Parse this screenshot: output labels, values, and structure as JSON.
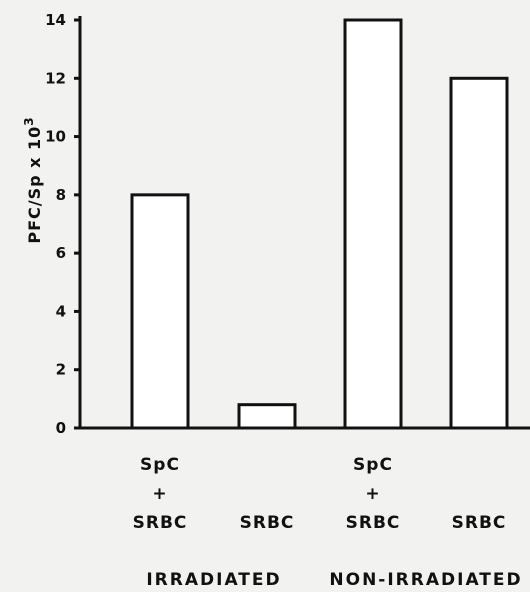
{
  "chart_data": {
    "type": "bar",
    "title": "",
    "ylabel": "PFC/Sp x 10",
    "ylabel_superscript": "3",
    "xlabel": "",
    "ylim": [
      0,
      14
    ],
    "yticks": [
      "0",
      "2",
      "4",
      "6",
      "8",
      "10",
      "12",
      "14"
    ],
    "grid": false,
    "categories": [
      {
        "top": "SpC",
        "mid": "+",
        "bottom": "SRBC",
        "group": "IRRADIATED"
      },
      {
        "top": "",
        "mid": "",
        "bottom": "SRBC",
        "group": "IRRADIATED"
      },
      {
        "top": "SpC",
        "mid": "+",
        "bottom": "SRBC",
        "group": "NON-IRRADIATED"
      },
      {
        "top": "",
        "mid": "",
        "bottom": "SRBC",
        "group": "NON-IRRADIATED"
      }
    ],
    "values": [
      8,
      0.8,
      14,
      12
    ],
    "groups": [
      "IRRADIATED",
      "NON-IRRADIATED"
    ],
    "bar_fill": "#ffffff",
    "line_color": "#111111"
  }
}
